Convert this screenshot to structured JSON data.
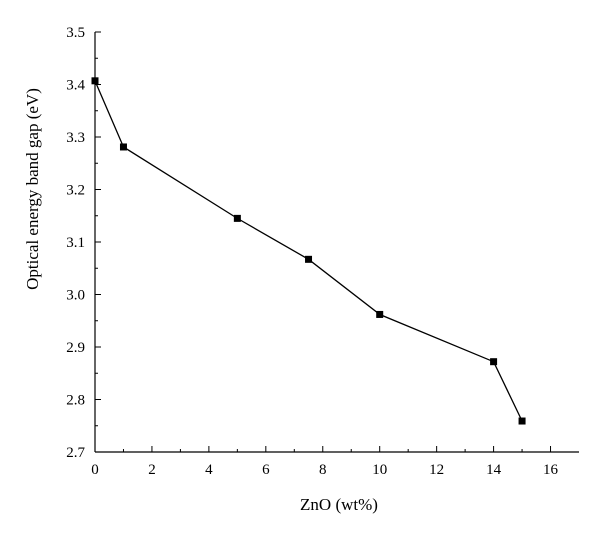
{
  "chart_data": {
    "type": "line",
    "title": "",
    "xlabel": "ZnO (wt%)",
    "ylabel": "Optical energy band gap (eV)",
    "xlim": [
      0,
      17
    ],
    "ylim": [
      2.7,
      3.5
    ],
    "x_ticks": [
      0,
      2,
      4,
      6,
      8,
      10,
      12,
      14,
      16
    ],
    "y_ticks": [
      2.7,
      2.8,
      2.9,
      3.0,
      3.1,
      3.2,
      3.3,
      3.4,
      3.5
    ],
    "x_tick_labels": [
      "0",
      "2",
      "4",
      "6",
      "8",
      "10",
      "12",
      "14",
      "16"
    ],
    "y_tick_labels": [
      "2.7",
      "2.8",
      "2.9",
      "3.0",
      "3.1",
      "3.2",
      "3.3",
      "3.4",
      "3.5"
    ],
    "grid": false,
    "legend": "none",
    "series": [
      {
        "marker": "square",
        "color": "#000000",
        "x": [
          0,
          1,
          5,
          7.5,
          10,
          14,
          15
        ],
        "y": [
          3.407,
          3.281,
          3.145,
          3.067,
          2.962,
          2.872,
          2.759
        ]
      }
    ]
  }
}
